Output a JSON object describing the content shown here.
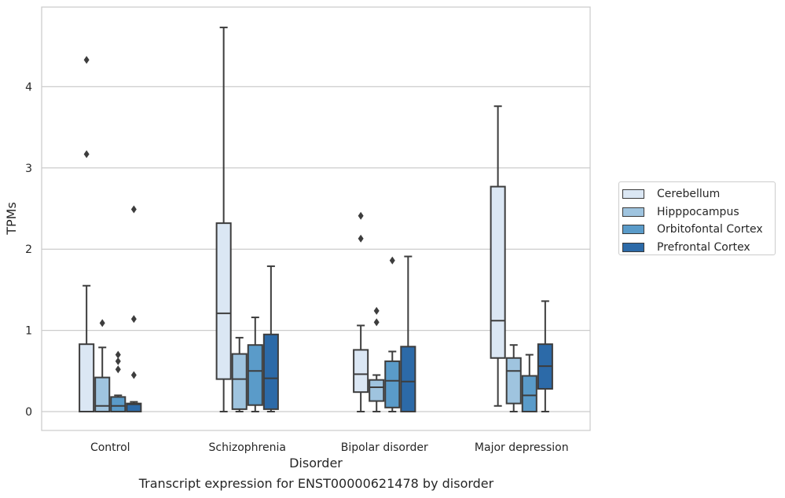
{
  "chart_data": {
    "type": "boxplot",
    "xlabel": "Disorder",
    "ylabel": "TPMs",
    "ylim": [
      -0.23,
      5.0
    ],
    "yticks": [
      0,
      1,
      2,
      3,
      4
    ],
    "grid": "horizontal",
    "legend_position": "right",
    "categories": [
      "Control",
      "Schizophrenia",
      "Bipolar disorder",
      "Major depression"
    ],
    "series": [
      {
        "name": "Cerebellum",
        "color": "#dbe7f4",
        "boxes": [
          {
            "q1": 0.0,
            "median": 0.0,
            "q3": 0.83,
            "whisker_low": 0.0,
            "whisker_high": 1.55,
            "outliers": [
              3.17,
              4.33
            ]
          },
          {
            "q1": 0.4,
            "median": 1.21,
            "q3": 2.32,
            "whisker_low": 0.0,
            "whisker_high": 4.73,
            "outliers": []
          },
          {
            "q1": 0.24,
            "median": 0.46,
            "q3": 0.76,
            "whisker_low": 0.0,
            "whisker_high": 1.06,
            "outliers": [
              2.13,
              2.41
            ]
          },
          {
            "q1": 0.66,
            "median": 1.12,
            "q3": 2.77,
            "whisker_low": 0.07,
            "whisker_high": 3.76,
            "outliers": []
          }
        ]
      },
      {
        "name": "Hipppocampus",
        "color": "#9fc4df",
        "boxes": [
          {
            "q1": 0.0,
            "median": 0.07,
            "q3": 0.42,
            "whisker_low": 0.0,
            "whisker_high": 0.79,
            "outliers": [
              1.09
            ]
          },
          {
            "q1": 0.03,
            "median": 0.4,
            "q3": 0.71,
            "whisker_low": 0.0,
            "whisker_high": 0.91,
            "outliers": []
          },
          {
            "q1": 0.13,
            "median": 0.3,
            "q3": 0.39,
            "whisker_low": 0.0,
            "whisker_high": 0.45,
            "outliers": [
              1.1,
              1.24
            ]
          },
          {
            "q1": 0.1,
            "median": 0.5,
            "q3": 0.66,
            "whisker_low": 0.0,
            "whisker_high": 0.82,
            "outliers": []
          }
        ]
      },
      {
        "name": "Orbitofontal Cortex",
        "color": "#5a9bc9",
        "boxes": [
          {
            "q1": 0.0,
            "median": 0.07,
            "q3": 0.18,
            "whisker_low": 0.0,
            "whisker_high": 0.2,
            "outliers": [
              0.52,
              0.62,
              0.7
            ]
          },
          {
            "q1": 0.08,
            "median": 0.5,
            "q3": 0.82,
            "whisker_low": 0.0,
            "whisker_high": 1.16,
            "outliers": []
          },
          {
            "q1": 0.05,
            "median": 0.38,
            "q3": 0.62,
            "whisker_low": 0.0,
            "whisker_high": 0.74,
            "outliers": [
              1.86
            ]
          },
          {
            "q1": 0.0,
            "median": 0.2,
            "q3": 0.44,
            "whisker_low": 0.0,
            "whisker_high": 0.7,
            "outliers": []
          }
        ]
      },
      {
        "name": "Prefrontal Cortex",
        "color": "#2c6aa8",
        "boxes": [
          {
            "q1": 0.0,
            "median": 0.09,
            "q3": 0.1,
            "whisker_low": 0.0,
            "whisker_high": 0.12,
            "outliers": [
              0.45,
              1.14,
              2.49
            ]
          },
          {
            "q1": 0.03,
            "median": 0.41,
            "q3": 0.95,
            "whisker_low": 0.0,
            "whisker_high": 1.79,
            "outliers": []
          },
          {
            "q1": 0.0,
            "median": 0.37,
            "q3": 0.8,
            "whisker_low": 0.0,
            "whisker_high": 1.91,
            "outliers": []
          },
          {
            "q1": 0.28,
            "median": 0.56,
            "q3": 0.83,
            "whisker_low": 0.0,
            "whisker_high": 1.36,
            "outliers": []
          }
        ]
      }
    ]
  },
  "caption": "Transcript expression for ENST00000621478 by disorder"
}
